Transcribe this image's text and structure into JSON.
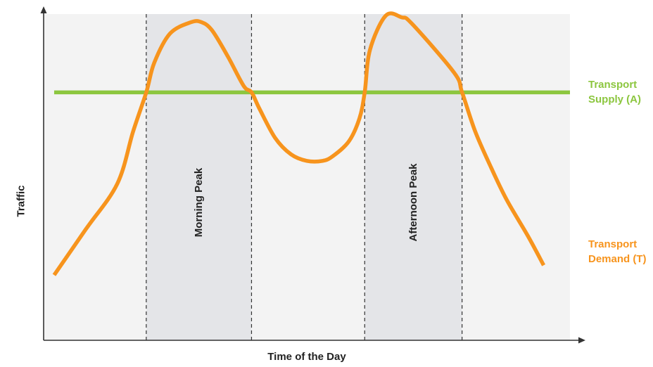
{
  "chart_data": {
    "type": "line",
    "title": "",
    "xlabel": "Time of the Day",
    "ylabel": "Traffic",
    "xlim": [
      0,
      100
    ],
    "ylim": [
      0,
      100
    ],
    "grid": false,
    "band_fill": "#e4e5e8",
    "plot_background": "#f3f3f3",
    "bands": [
      {
        "label": "Morning Peak",
        "start": 19.5,
        "end": 39.5
      },
      {
        "label": "Afternoon Peak",
        "start": 61.0,
        "end": 79.5
      }
    ],
    "series": [
      {
        "name": "Transport Supply (A)",
        "label_lines": [
          "Transport",
          "Supply (A)"
        ],
        "color": "#8cc63f",
        "x": [
          2,
          100
        ],
        "y": [
          76,
          76
        ]
      },
      {
        "name": "Transport Demand (T)",
        "label_lines": [
          "Transport",
          "Demand (T)"
        ],
        "color": "#f7941d",
        "x": [
          2,
          8,
          14,
          17,
          19.5,
          21,
          24,
          28,
          30,
          32,
          35,
          38,
          39.5,
          41,
          44,
          47,
          50,
          53,
          55,
          58,
          60,
          61,
          62,
          65,
          68,
          70,
          78,
          79.5,
          82,
          85,
          88,
          92,
          95
        ],
        "y": [
          20,
          34,
          48,
          64,
          76,
          85,
          94,
          97.5,
          97.5,
          95,
          87,
          78,
          76,
          71,
          62,
          57,
          55,
          55,
          56.5,
          61,
          68,
          76,
          89,
          99.5,
          99,
          97,
          82,
          76,
          64,
          53,
          43,
          32,
          23
        ]
      }
    ]
  }
}
